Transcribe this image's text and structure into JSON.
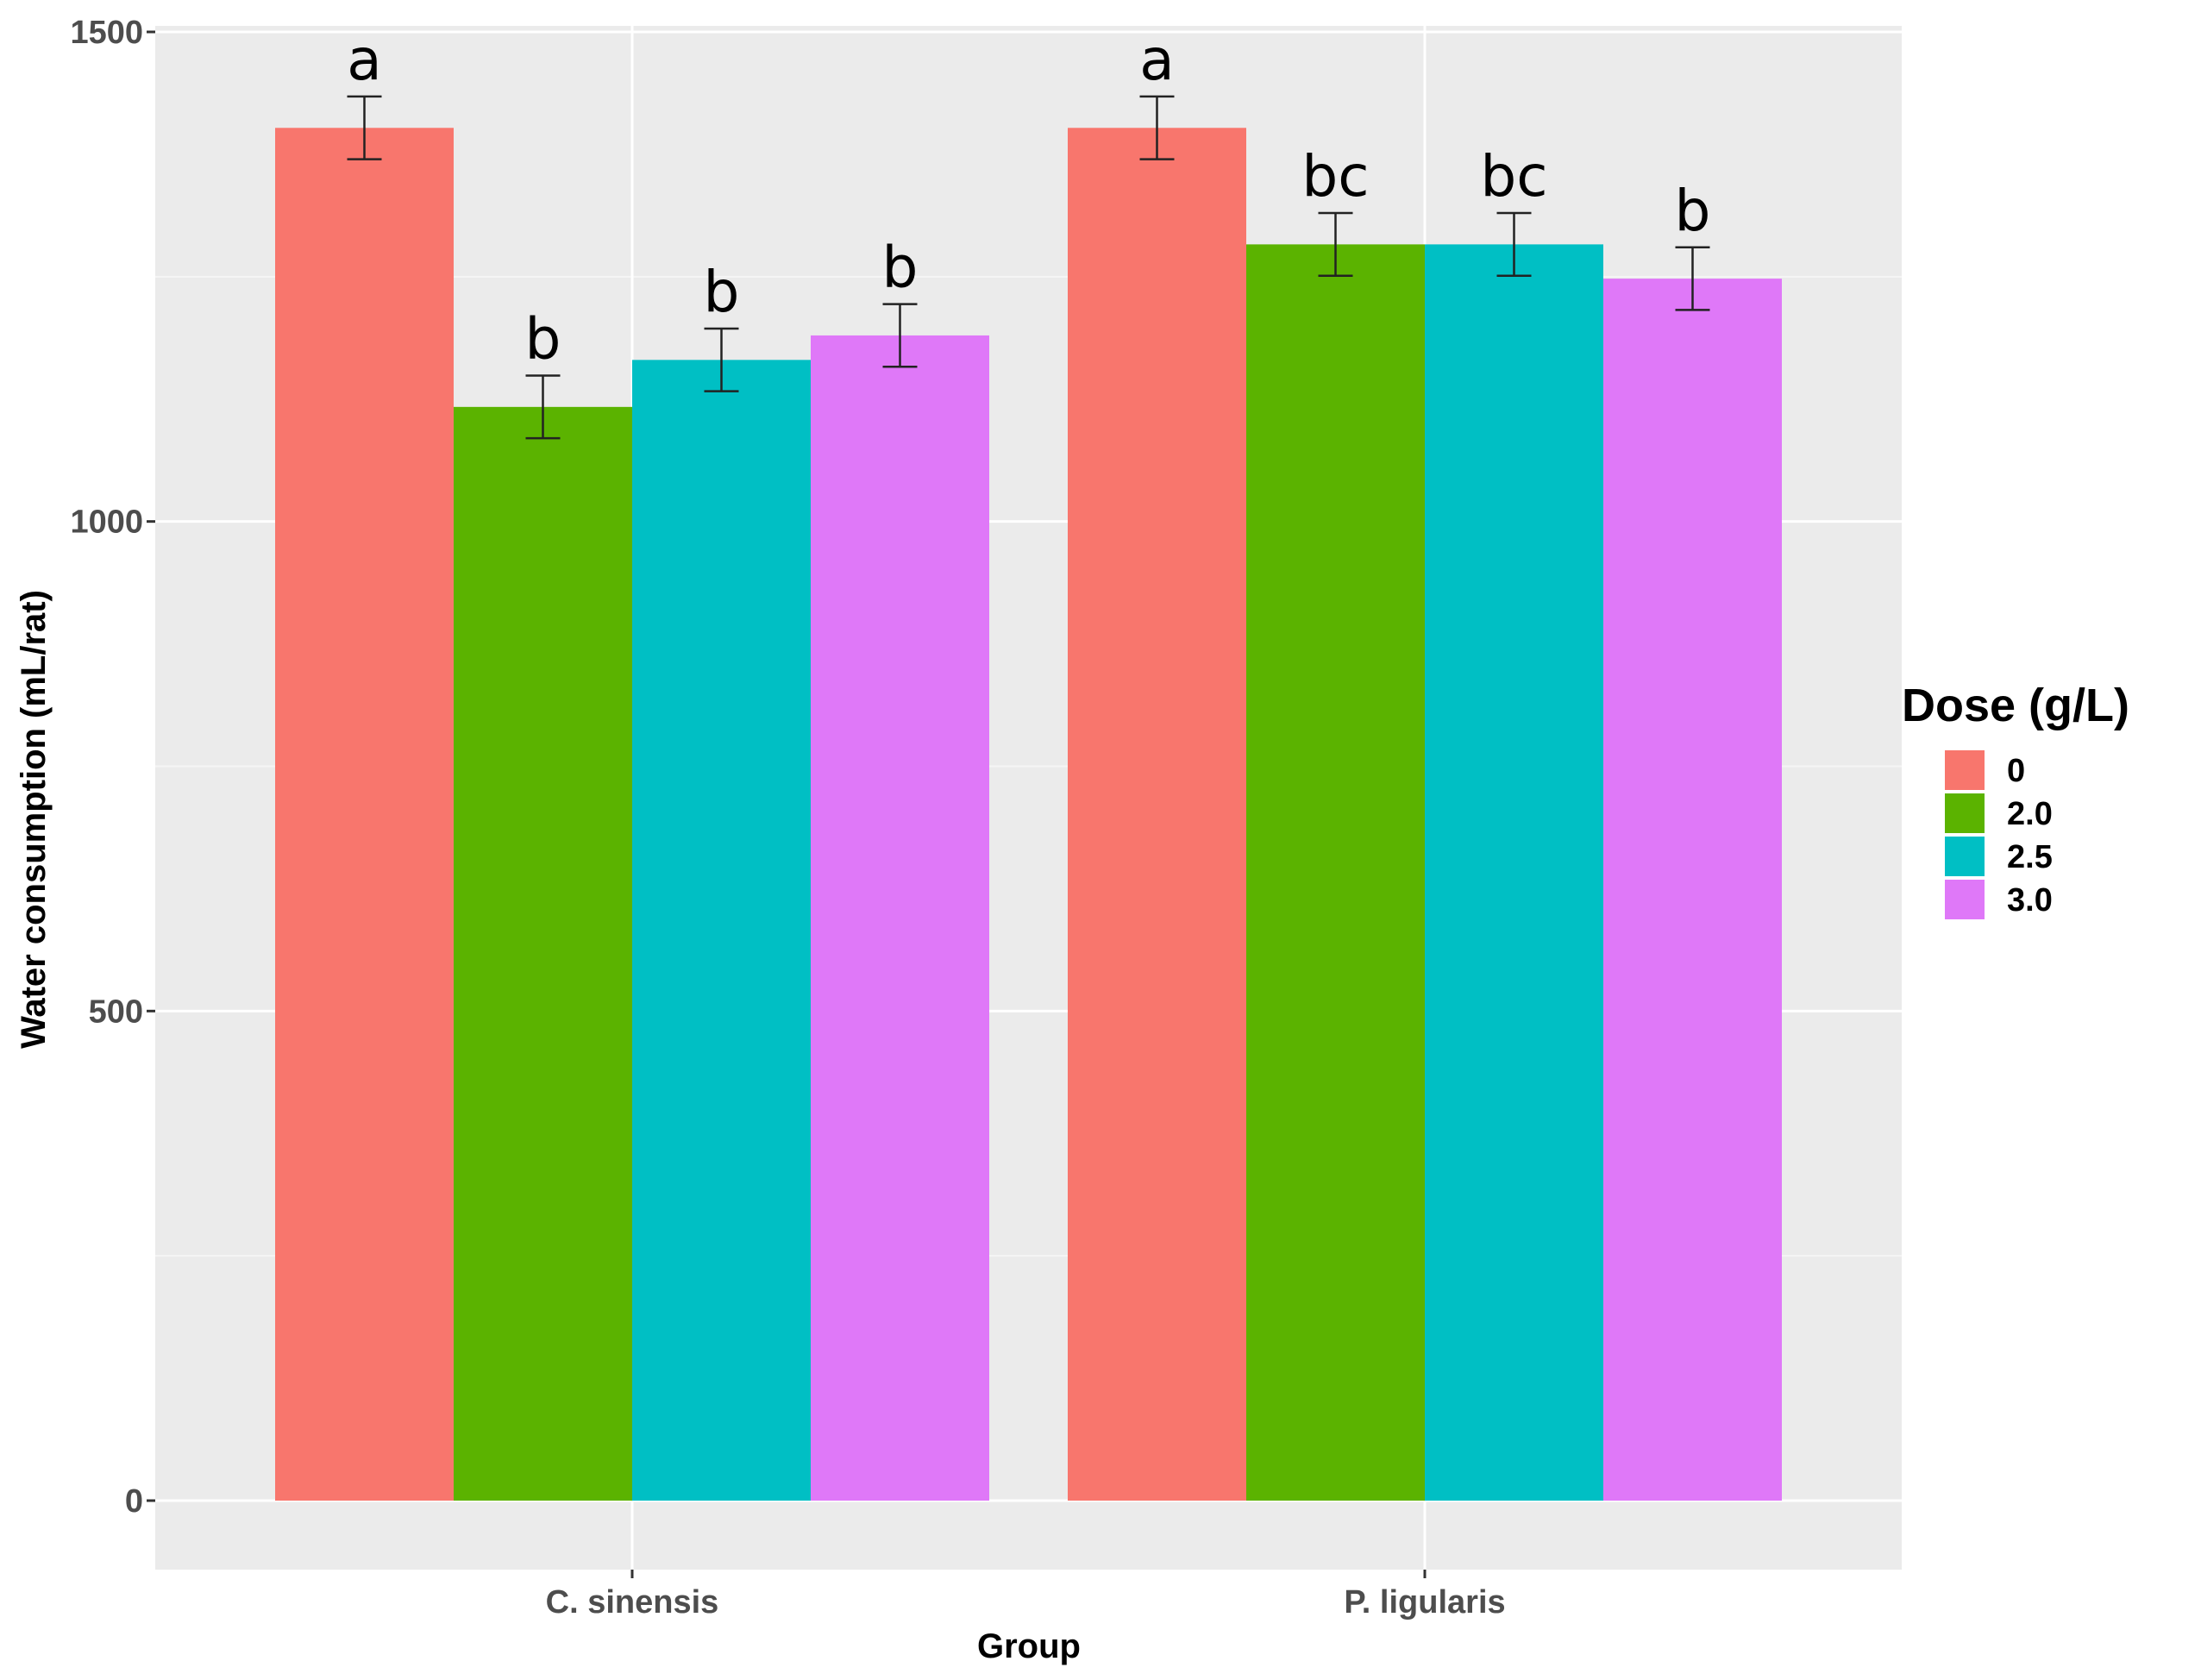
{
  "chart_data": {
    "type": "bar",
    "xlabel": "Group",
    "ylabel": "Water consumption (mL/rat)",
    "ylim": [
      0,
      1500
    ],
    "yticks": [
      0,
      500,
      1000,
      1500
    ],
    "categories": [
      "C. sinensis",
      "P. ligularis"
    ],
    "legend": {
      "title": "Dose (g/L)",
      "position": "right"
    },
    "series": [
      {
        "name": "0",
        "color": "#F8766D",
        "values": [
          1402,
          1402
        ],
        "errors": [
          32,
          32
        ],
        "letters": [
          "a",
          "a"
        ]
      },
      {
        "name": "2.0",
        "color": "#5BB300",
        "values": [
          1117,
          1283
        ],
        "errors": [
          32,
          32
        ],
        "letters": [
          "b",
          "bc"
        ]
      },
      {
        "name": "2.5",
        "color": "#00BFC4",
        "values": [
          1165,
          1283
        ],
        "errors": [
          32,
          32
        ],
        "letters": [
          "b",
          "bc"
        ]
      },
      {
        "name": "3.0",
        "color": "#DF78F8",
        "values": [
          1190,
          1248
        ],
        "errors": [
          32,
          32
        ],
        "letters": [
          "b",
          "b"
        ]
      }
    ]
  }
}
